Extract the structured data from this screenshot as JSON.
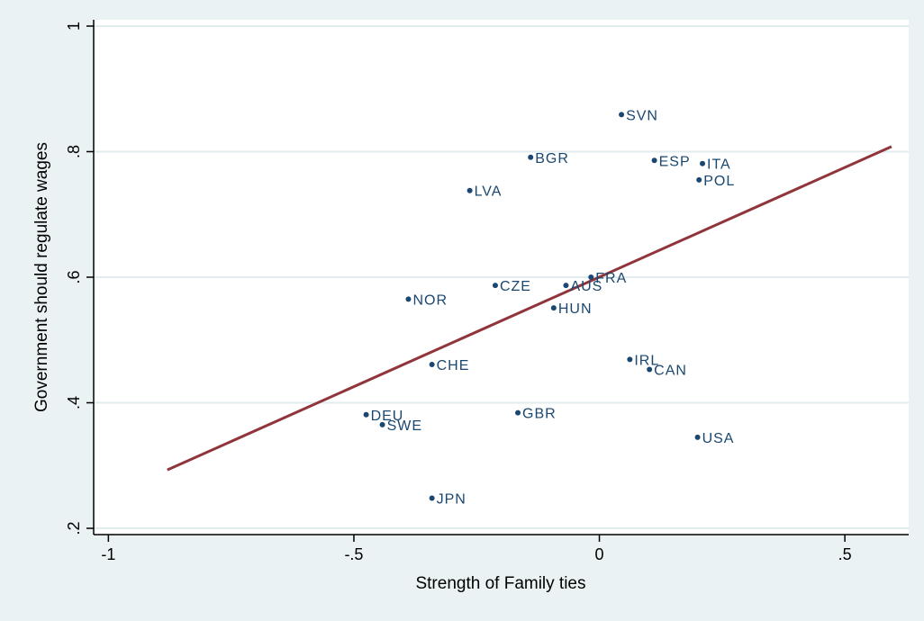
{
  "chart_data": {
    "type": "scatter",
    "title": "",
    "xlabel": "Strength of Family ties",
    "ylabel": "Government should regulate wages",
    "xlim": [
      -1.03,
      0.63
    ],
    "ylim": [
      0.19,
      1.01
    ],
    "x_ticks": [
      {
        "value": -1,
        "label": "-1"
      },
      {
        "value": -0.5,
        "label": "-.5"
      },
      {
        "value": 0,
        "label": "0"
      },
      {
        "value": 0.5,
        "label": ".5"
      }
    ],
    "y_ticks": [
      {
        "value": 0.2,
        "label": ".2"
      },
      {
        "value": 0.4,
        "label": ".4"
      },
      {
        "value": 0.6,
        "label": ".6"
      },
      {
        "value": 0.8,
        "label": ".8"
      },
      {
        "value": 1.0,
        "label": "1"
      }
    ],
    "grid": true,
    "points": [
      {
        "label": "SVN",
        "x": 0.045,
        "y": 0.859
      },
      {
        "label": "BGR",
        "x": -0.14,
        "y": 0.791
      },
      {
        "label": "ESP",
        "x": 0.112,
        "y": 0.786
      },
      {
        "label": "ITA",
        "x": 0.21,
        "y": 0.781
      },
      {
        "label": "POL",
        "x": 0.203,
        "y": 0.755
      },
      {
        "label": "LVA",
        "x": -0.264,
        "y": 0.738
      },
      {
        "label": "FRA",
        "x": -0.017,
        "y": 0.6
      },
      {
        "label": "CZE",
        "x": -0.212,
        "y": 0.587
      },
      {
        "label": "AUS",
        "x": -0.068,
        "y": 0.587
      },
      {
        "label": "NOR",
        "x": -0.389,
        "y": 0.565
      },
      {
        "label": "HUN",
        "x": -0.093,
        "y": 0.551
      },
      {
        "label": "IRL",
        "x": 0.062,
        "y": 0.469
      },
      {
        "label": "CAN",
        "x": 0.102,
        "y": 0.453
      },
      {
        "label": "CHE",
        "x": -0.341,
        "y": 0.461
      },
      {
        "label": "GBR",
        "x": -0.166,
        "y": 0.384
      },
      {
        "label": "DEU",
        "x": -0.475,
        "y": 0.381
      },
      {
        "label": "SWE",
        "x": -0.442,
        "y": 0.365
      },
      {
        "label": "USA",
        "x": 0.2,
        "y": 0.345
      },
      {
        "label": "JPN",
        "x": -0.341,
        "y": 0.248
      }
    ],
    "fit_line": {
      "x": [
        -0.88,
        0.595
      ],
      "y": [
        0.293,
        0.808
      ]
    },
    "colors": {
      "background": "#eaf2f3",
      "plot_area": "#ffffff",
      "grid": "#e0ecee",
      "marker": "#1a476f",
      "label": "#1a476f",
      "fit_line": "#90353b"
    }
  }
}
